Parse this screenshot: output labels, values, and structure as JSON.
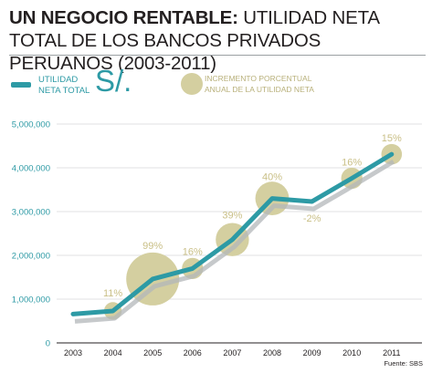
{
  "title": {
    "bold": "UN NEGOCIO RENTABLE:",
    "rest": " UTILIDAD NETA TOTAL DE LOS BANCOS PRIVADOS PERUANOS (2003-2011)"
  },
  "legend": {
    "line_label_1": "UTILIDAD",
    "line_label_2": "NETA TOTAL",
    "currency": "S/.",
    "bubble_label_1": "INCREMENTO PORCENTUAL",
    "bubble_label_2": "ANUAL DE LA UTILIDAD NETA"
  },
  "source": "Fuente: SBS",
  "colors": {
    "line": "#2d9aa5",
    "shadow": "#b3b7ba",
    "bubble": "#d4cfa0",
    "pct_text": "#c9bf86",
    "axis_text": "#2d9aa5"
  },
  "chart_data": {
    "type": "line",
    "categories": [
      "2003",
      "2004",
      "2005",
      "2006",
      "2007",
      "2008",
      "2009",
      "2010",
      "2011"
    ],
    "series": [
      {
        "name": "UTILIDAD NETA TOTAL",
        "values": [
          660000,
          730000,
          1460000,
          1700000,
          2360000,
          3300000,
          3230000,
          3760000,
          4310000
        ]
      }
    ],
    "pct_change": [
      null,
      11,
      99,
      16,
      39,
      40,
      -2,
      16,
      15
    ],
    "pct_labels": [
      "",
      "11%",
      "99%",
      "16%",
      "39%",
      "40%",
      "-2%",
      "16%",
      "15%"
    ],
    "y_ticks": [
      0,
      1000000,
      2000000,
      3000000,
      4000000,
      5000000
    ],
    "y_tick_labels": [
      "0",
      "1,000,000",
      "2,000,000",
      "3,000,000",
      "4,000,000",
      "5,000,000"
    ],
    "ylim": [
      0,
      5000000
    ],
    "grid": true
  }
}
